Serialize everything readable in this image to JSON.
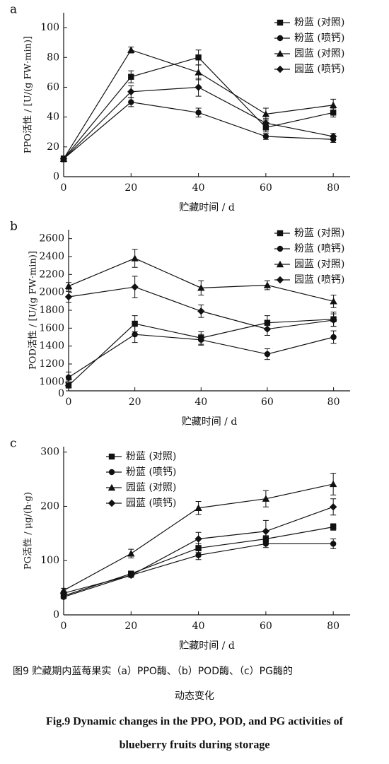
{
  "chart_data": [
    {
      "type": "line",
      "panel": "a",
      "xlabel": "贮藏时间 / d",
      "ylabel": "PPO活性 / [U/(g FW·min)]",
      "x": [
        0,
        20,
        40,
        60,
        80
      ],
      "xlim": [
        0,
        85
      ],
      "xticks": [
        0,
        20,
        40,
        60,
        80
      ],
      "ylim": [
        0,
        110
      ],
      "yticks": [
        0,
        20,
        40,
        60,
        80,
        100
      ],
      "legend": "upper right",
      "series": [
        {
          "name": "粉蓝 (对照)",
          "color": "#111111",
          "marker": "square",
          "values": [
            12,
            67,
            80,
            33,
            43
          ],
          "errors": [
            2,
            4,
            5,
            3,
            3
          ]
        },
        {
          "name": "粉蓝 (喷钙)",
          "color": "#111111",
          "marker": "circle",
          "values": [
            12,
            50,
            43,
            27,
            25
          ],
          "errors": [
            2,
            3,
            3,
            2,
            2
          ]
        },
        {
          "name": "园蓝 (对照)",
          "color": "#111111",
          "marker": "triangle",
          "values": [
            12,
            85,
            70,
            42,
            48
          ],
          "errors": [
            2,
            2,
            5,
            4,
            4
          ]
        },
        {
          "name": "园蓝 (喷钙)",
          "color": "#111111",
          "marker": "diamond",
          "values": [
            12,
            57,
            60,
            36,
            27
          ],
          "errors": [
            2,
            4,
            6,
            3,
            2
          ]
        }
      ]
    },
    {
      "type": "line",
      "panel": "b",
      "xlabel": "贮藏时间 / d",
      "ylabel": "POD活性 / [U/(g FW·min)]",
      "x": [
        0,
        20,
        40,
        60,
        80
      ],
      "xlim": [
        0,
        85
      ],
      "xticks": [
        0,
        20,
        40,
        60,
        80
      ],
      "ylim": [
        900,
        2700
      ],
      "yticks": [
        1000,
        1200,
        1400,
        1600,
        1800,
        2000,
        2200,
        2400,
        2600
      ],
      "y_break_label": "0",
      "legend": "upper right",
      "series": [
        {
          "name": "粉蓝 (对照)",
          "color": "#111111",
          "marker": "square",
          "values": [
            960,
            1650,
            1490,
            1660,
            1700
          ],
          "errors": [
            60,
            90,
            70,
            80,
            80
          ]
        },
        {
          "name": "粉蓝 (喷钙)",
          "color": "#111111",
          "marker": "circle",
          "values": [
            1050,
            1530,
            1470,
            1310,
            1500
          ],
          "errors": [
            60,
            90,
            60,
            60,
            70
          ]
        },
        {
          "name": "园蓝 (对照)",
          "color": "#111111",
          "marker": "triangle",
          "values": [
            2070,
            2380,
            2050,
            2080,
            1900
          ],
          "errors": [
            40,
            100,
            80,
            50,
            70
          ]
        },
        {
          "name": "园蓝 (喷钙)",
          "color": "#111111",
          "marker": "diamond",
          "values": [
            1950,
            2060,
            1790,
            1590,
            1690
          ],
          "errors": [
            60,
            120,
            70,
            70,
            70
          ]
        }
      ]
    },
    {
      "type": "line",
      "panel": "c",
      "xlabel": "贮藏时间 / d",
      "ylabel": "PG活性 / μg/(h·g)",
      "x": [
        0,
        20,
        40,
        60,
        80
      ],
      "xlim": [
        0,
        85
      ],
      "xticks": [
        0,
        20,
        40,
        60,
        80
      ],
      "ylim": [
        0,
        310
      ],
      "yticks": [
        0,
        100,
        200,
        300
      ],
      "legend": "upper left",
      "series": [
        {
          "name": "粉蓝 (对照)",
          "color": "#111111",
          "marker": "square",
          "values": [
            35,
            76,
            123,
            140,
            162
          ],
          "errors": [
            3,
            4,
            8,
            6,
            6
          ]
        },
        {
          "name": "粉蓝 (喷钙)",
          "color": "#111111",
          "marker": "circle",
          "values": [
            33,
            73,
            110,
            131,
            131
          ],
          "errors": [
            3,
            4,
            8,
            7,
            9
          ]
        },
        {
          "name": "园蓝 (对照)",
          "color": "#111111",
          "marker": "triangle",
          "values": [
            45,
            113,
            197,
            214,
            241
          ],
          "errors": [
            4,
            8,
            12,
            15,
            20
          ]
        },
        {
          "name": "园蓝 (喷钙)",
          "color": "#111111",
          "marker": "diamond",
          "values": [
            40,
            73,
            140,
            154,
            199
          ],
          "errors": [
            4,
            4,
            12,
            20,
            15
          ]
        }
      ]
    }
  ],
  "caption_cn": [
    "图9 贮藏期内蓝莓果实（a）PPO酶、（b）POD酶、（c）PG酶的",
    "动态变化"
  ],
  "caption_en": [
    "Fig.9 Dynamic changes in the PPO, POD, and PG activities of",
    "blueberry fruits during storage"
  ]
}
